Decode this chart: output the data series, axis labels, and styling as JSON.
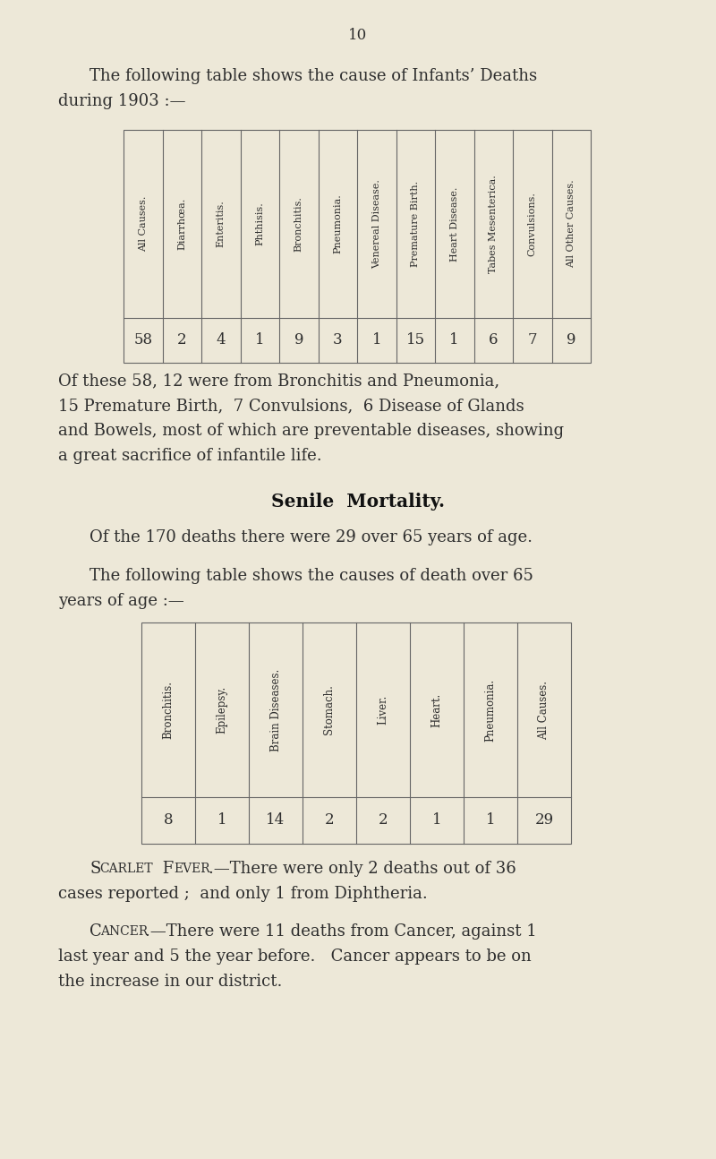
{
  "bg_color": "#ede8d8",
  "page_number": "10",
  "intro_text1": "The following table shows the cause of Infants’ Deaths",
  "intro_text2": "during 1903 :—",
  "table1_headers": [
    "All Causes.",
    "Diarrhœa.",
    "Enteritis.",
    "Phthisis.",
    "Bronchitis.",
    "Pneumonia.",
    "Venereal Disease.",
    "Premature Birth.",
    "Heart Disease.",
    "Tabes Mesenterica.",
    "Convulsions.",
    "All Other Causes."
  ],
  "table1_values": [
    "58",
    "2",
    "4",
    "1",
    "9",
    "3",
    "1",
    "15",
    "1",
    "6",
    "7",
    "9"
  ],
  "para1_line1": "Of these 58, 12 were from Bronchitis and Pneumonia,",
  "para1_line2": "15 Premature Birth,  7 Convulsions,  6 Disease of Glands",
  "para1_line3": "and Bowels, most of which are preventable diseases, showing",
  "para1_line4": "a great sacrifice of infantile life.",
  "senile_title": "Senile  Mortality.",
  "senile_para1": "Of the 170 deaths there were 29 over 65 years of age.",
  "senile_para2_1": "The following table shows the causes of death over 65",
  "senile_para2_2": "years of age :—",
  "table2_headers": [
    "Bronchitis.",
    "Epilepsy.",
    "Brain Diseases.",
    "Stomach.",
    "Liver.",
    "Heart.",
    "Pneumonia.",
    "All Causes."
  ],
  "table2_values": [
    "8",
    "1",
    "14",
    "2",
    "2",
    "1",
    "1",
    "29"
  ],
  "scarlet_sc1": "S",
  "scarlet_sc2": "CARLET",
  "scarlet_sp": " ",
  "scarlet_sc3": "F",
  "scarlet_sc4": "EVER",
  "scarlet_rest": ".—There were only 2 deaths out of 36",
  "scarlet_line2": "cases reported ;  and only 1 from Diphtheria.",
  "cancer_sc1": "C",
  "cancer_sc2": "ANCER",
  "cancer_rest": ".—There were 11 deaths from Cancer, against 1",
  "cancer_line2": "last year and 5 the year before.   Cancer appears to be on",
  "cancer_line3": "the increase in our district."
}
